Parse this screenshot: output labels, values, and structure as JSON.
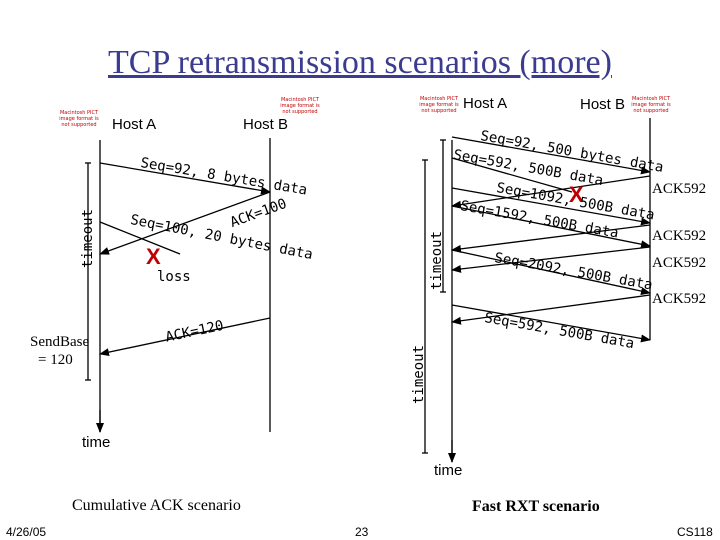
{
  "slide": {
    "title": "TCP retransmission scenarios (more)",
    "footer_date": "4/26/05",
    "footer_page": "23",
    "footer_course": "CS118"
  },
  "image_placeholder": {
    "text": "Macintosh PICT image format is not supported"
  },
  "left_scenario": {
    "host_a": "Host A",
    "host_b": "Host B",
    "msg1": "Seq=92, 8 bytes data",
    "msg2": "Seq=100, 20 bytes data",
    "ack1": "ACK=100",
    "ack2": "ACK=120",
    "loss_mark": "X",
    "loss_label": "loss",
    "timeout": "timeout",
    "sendbase_line1": "SendBase",
    "sendbase_line2": "= 120",
    "time": "time",
    "caption": "Cumulative ACK scenario"
  },
  "right_scenario": {
    "host_a": "Host A",
    "host_b": "Host B",
    "msg1": "Seq=92, 500 bytes data",
    "msg2": "Seq=592, 500B data",
    "msg3": "Seq=1092, 500B data",
    "msg4": "Seq=1592, 500B data",
    "msg5": "Seq=2092, 500B data",
    "msg6": "Seq=592, 500B data",
    "loss_mark": "X",
    "ack1": "ACK592",
    "ack2": "ACK592",
    "ack3": "ACK592",
    "ack4": "ACK592",
    "timeout1": "timeout",
    "timeout2": "timeout",
    "time": "time",
    "caption": "Fast RXT scenario"
  }
}
